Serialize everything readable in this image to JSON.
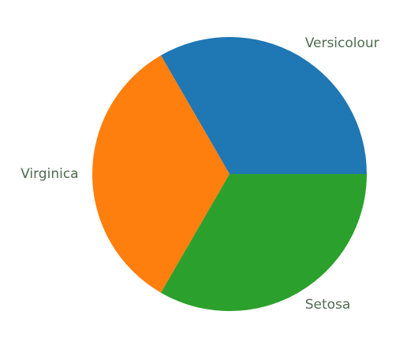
{
  "chart_data": {
    "type": "pie",
    "categories": [
      "Versicolour",
      "Virginica",
      "Setosa"
    ],
    "values": [
      50,
      50,
      50
    ],
    "colors": [
      "#1f77b4",
      "#ff7f0e",
      "#2ca02c"
    ],
    "label_color": "#4f6b4f"
  }
}
